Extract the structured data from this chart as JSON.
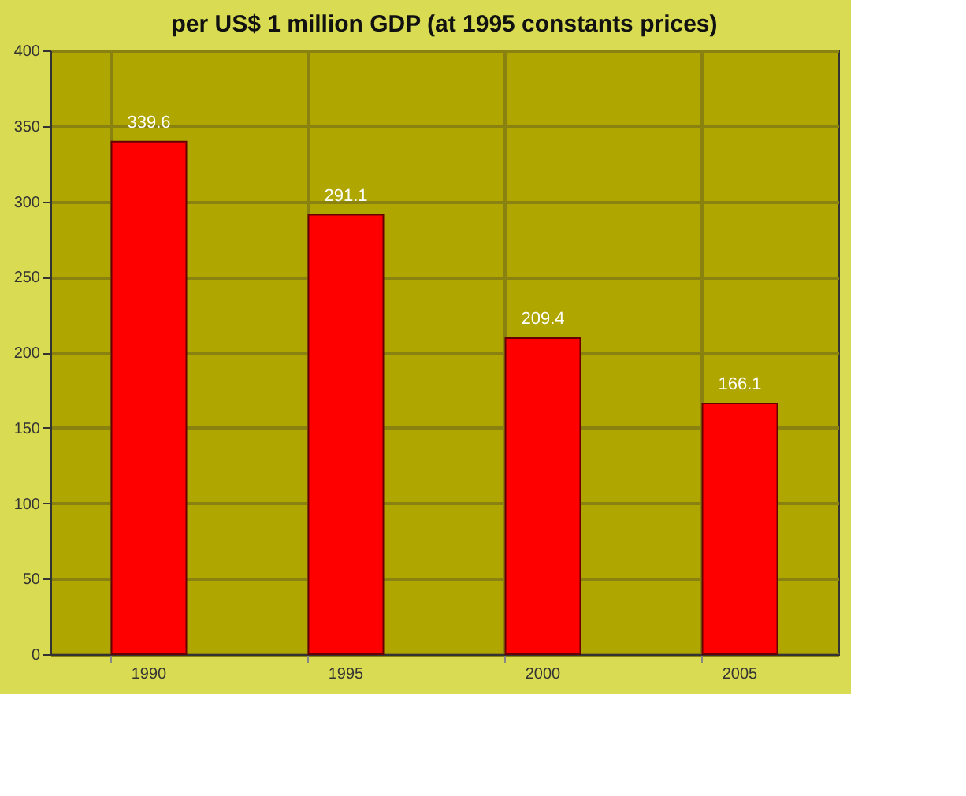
{
  "chart_data": {
    "type": "bar",
    "title": "per US$ 1 million GDP (at 1995 constants prices)",
    "categories": [
      "1990",
      "1995",
      "2000",
      "2005"
    ],
    "values": [
      339.6,
      291.1,
      209.4,
      166.1
    ],
    "color": "#ff0000",
    "ylim": [
      0,
      400
    ],
    "yticks": [
      0,
      50,
      100,
      150,
      200,
      250,
      300,
      350,
      400
    ],
    "grid": true,
    "data_labels": true
  }
}
